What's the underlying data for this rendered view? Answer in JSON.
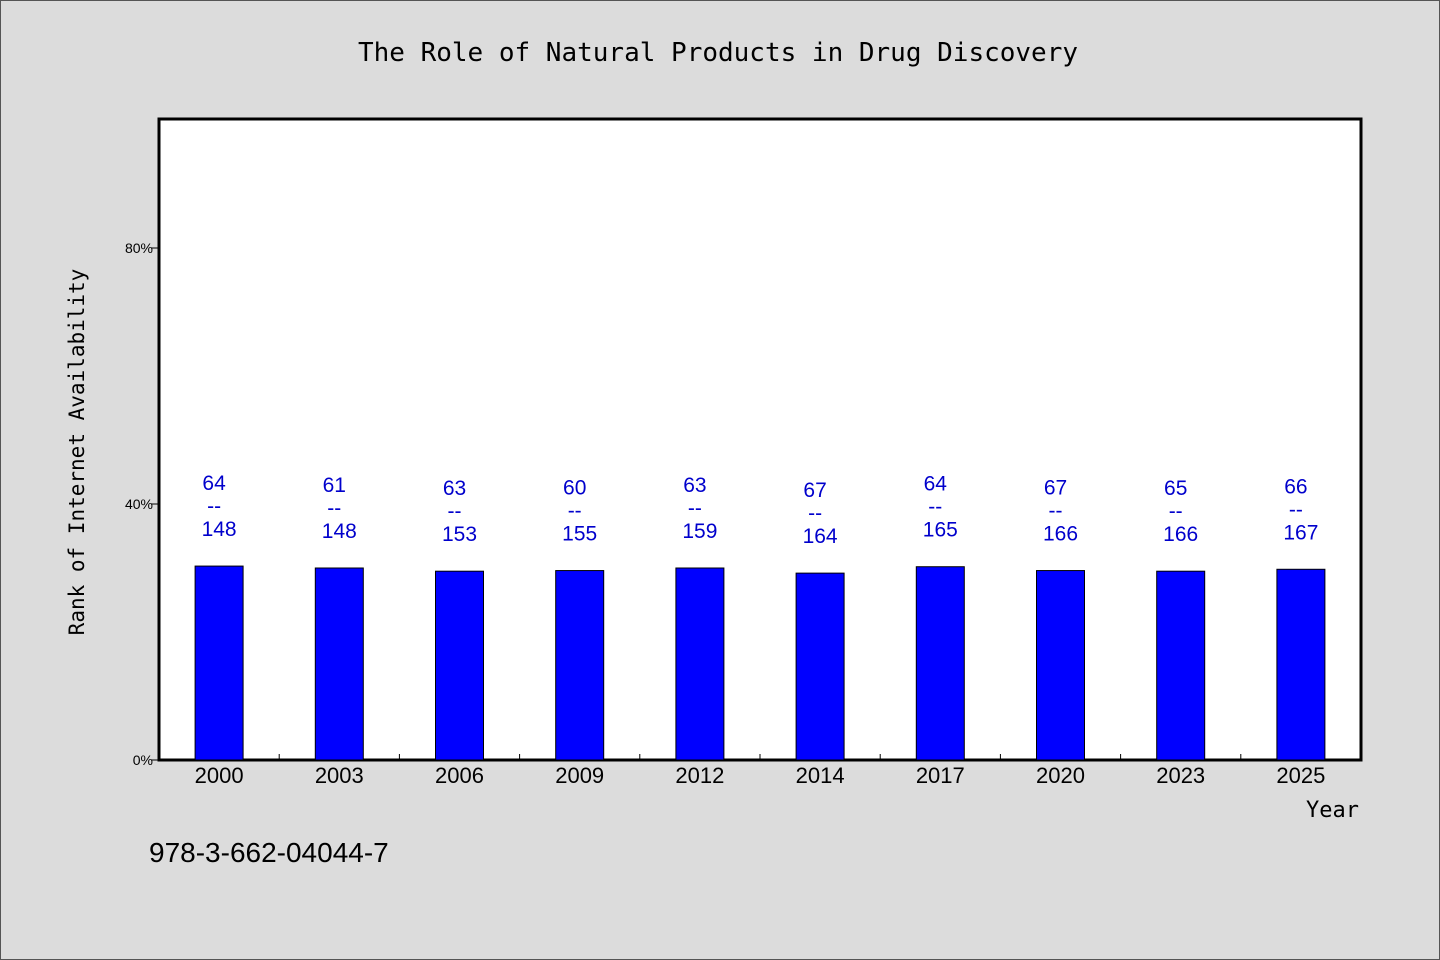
{
  "chart_data": {
    "type": "bar",
    "title": "The Role of Natural Products in Drug Discovery",
    "xlabel": "Year",
    "ylabel": "Rank of Internet Availability",
    "categories": [
      "2000",
      "2003",
      "2006",
      "2009",
      "2012",
      "2014",
      "2017",
      "2020",
      "2023",
      "2025"
    ],
    "values": [
      30.3,
      30.0,
      29.5,
      29.6,
      30.0,
      29.2,
      30.2,
      29.6,
      29.5,
      29.8
    ],
    "labels_top": [
      "64",
      "61",
      "63",
      "60",
      "63",
      "67",
      "64",
      "67",
      "65",
      "66"
    ],
    "labels_separator": "--",
    "labels_bottom": [
      "148",
      "148",
      "153",
      "155",
      "159",
      "164",
      "165",
      "166",
      "166",
      "167"
    ],
    "yticks": [
      "0%",
      "40%",
      "80%"
    ],
    "ytick_values": [
      0,
      40,
      80
    ],
    "ylim": [
      0,
      100
    ],
    "grid": false,
    "colors": {
      "bar": "#0000ff",
      "label": "#0000cc",
      "background": "#dcdcdc",
      "plot": "#ffffff"
    }
  },
  "footer": {
    "isbn": "978-3-662-04044-7"
  }
}
